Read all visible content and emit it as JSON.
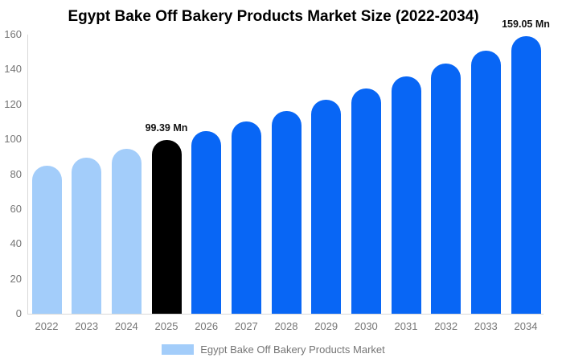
{
  "chart_data": {
    "type": "bar",
    "title": "Egypt Bake Off Bakery Products Market Size (2022-2034)",
    "categories": [
      "2022",
      "2023",
      "2024",
      "2025",
      "2026",
      "2027",
      "2028",
      "2029",
      "2030",
      "2031",
      "2032",
      "2033",
      "2034"
    ],
    "values": [
      84.97,
      89.53,
      94.33,
      99.39,
      104.72,
      110.33,
      116.24,
      122.47,
      129.03,
      135.94,
      143.23,
      150.9,
      159.05
    ],
    "bar_roles": [
      "historical",
      "historical",
      "historical",
      "current",
      "forecast",
      "forecast",
      "forecast",
      "forecast",
      "forecast",
      "forecast",
      "forecast",
      "forecast",
      "forecast"
    ],
    "annotations": [
      {
        "category": "2025",
        "text": "99.39 Mn"
      },
      {
        "category": "2034",
        "text": "159.05 Mn"
      }
    ],
    "xlabel": "",
    "ylabel": "",
    "ylim": [
      0,
      160
    ],
    "yticks": [
      0,
      20,
      40,
      60,
      80,
      100,
      120,
      140,
      160
    ],
    "grid": false,
    "legend_position": "bottom",
    "legend": {
      "label": "Egypt Bake Off Bakery Products Market",
      "swatch_color": "#a3cdfa"
    },
    "colors": {
      "historical": "#a3cdfa",
      "current": "#000000",
      "forecast": "#0866f5",
      "axis": "#d9d9d9",
      "tick_text": "#757575"
    }
  }
}
